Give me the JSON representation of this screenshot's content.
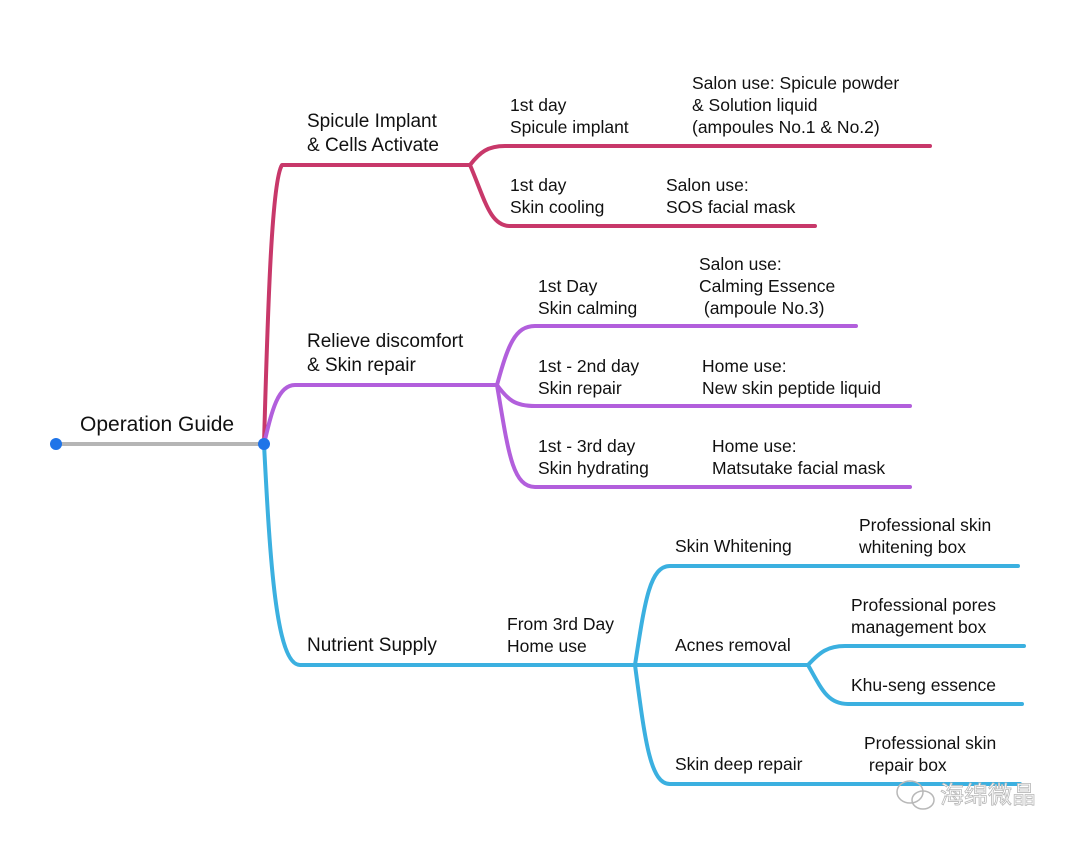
{
  "colors": {
    "root": "#b5b5b5",
    "node_dot": "#1f74e8",
    "branch_spicule": "#c8386a",
    "branch_relieve": "#b25fdc",
    "branch_nutrient": "#3bb0e0"
  },
  "root": {
    "label": "Operation Guide"
  },
  "branches": [
    {
      "label": [
        "Spicule Implant",
        "& Cells Activate"
      ],
      "children": [
        {
          "label": [
            "1st day",
            "Spicule implant"
          ],
          "detail": [
            "Salon use: Spicule powder",
            "& Solution liquid",
            "(ampoules No.1 & No.2)"
          ]
        },
        {
          "label": [
            "1st day",
            "Skin cooling"
          ],
          "detail": [
            "Salon use:",
            "SOS facial mask"
          ]
        }
      ]
    },
    {
      "label": [
        "Relieve discomfort",
        "& Skin repair"
      ],
      "children": [
        {
          "label": [
            "1st Day",
            "Skin calming"
          ],
          "detail": [
            "Salon use:",
            "Calming Essence",
            " (ampoule No.3)"
          ]
        },
        {
          "label": [
            "1st - 2nd day",
            "Skin repair"
          ],
          "detail": [
            "Home use:",
            "New skin peptide liquid"
          ]
        },
        {
          "label": [
            "1st - 3rd day",
            "Skin hydrating"
          ],
          "detail": [
            "Home use:",
            "Matsutake facial mask"
          ]
        }
      ]
    },
    {
      "label": [
        "Nutrient Supply"
      ],
      "sub_label": [
        "From 3rd Day",
        "Home use"
      ],
      "children": [
        {
          "label": [
            "Skin Whitening"
          ],
          "detail": [
            "Professional skin",
            "whitening box"
          ]
        },
        {
          "label": [
            "Acnes removal"
          ],
          "items": [
            [
              "Professional pores",
              "management box"
            ],
            [
              "Khu-seng essence"
            ]
          ]
        },
        {
          "label": [
            "Skin deep repair"
          ],
          "detail": [
            "Professional skin",
            " repair box"
          ]
        }
      ]
    }
  ],
  "watermark": "海绵微晶"
}
